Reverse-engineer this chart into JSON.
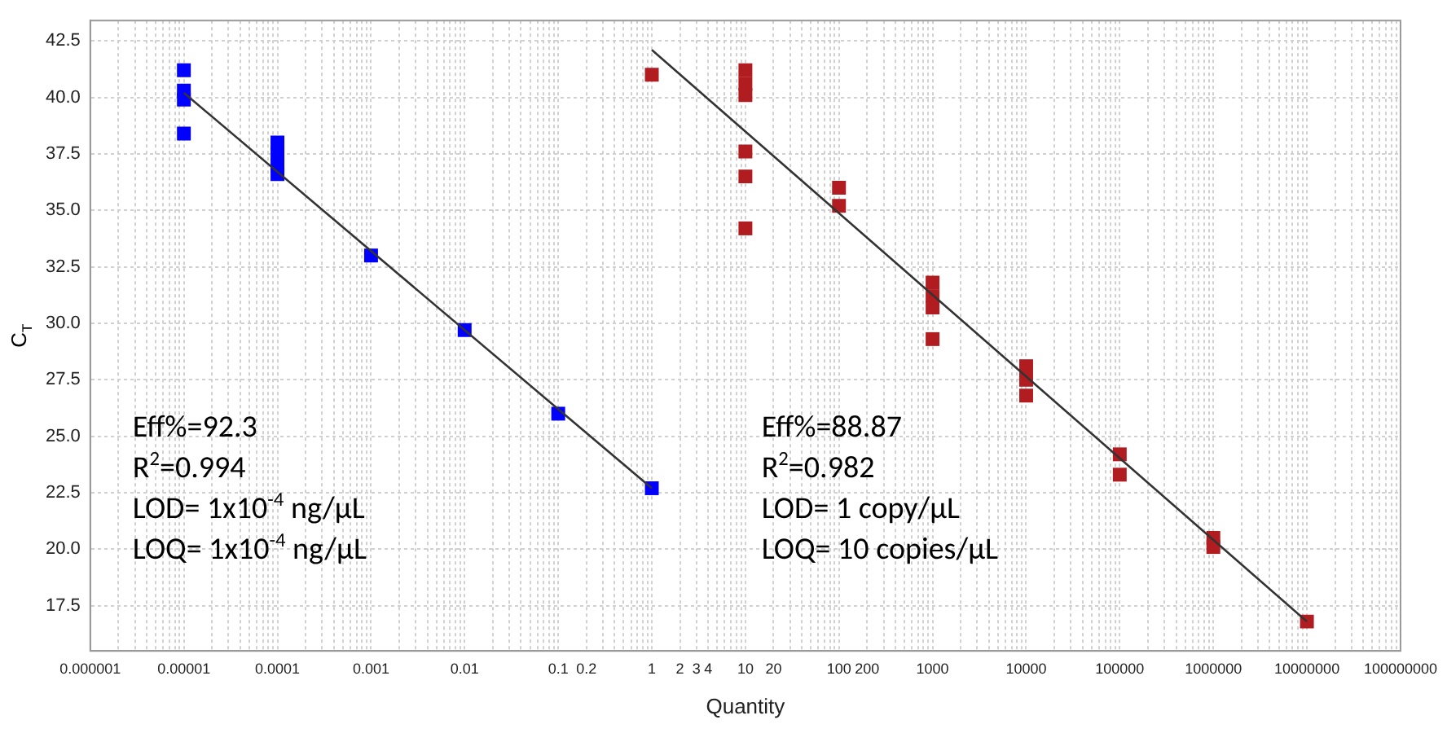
{
  "chart_data": {
    "type": "scatter",
    "xlabel": "Quantity",
    "ylabel": "C$_{T}$",
    "log": "x",
    "grid": true,
    "xlim": [
      1e-06,
      100000000
    ],
    "ylim": [
      15.5,
      43.4
    ],
    "xticks": [
      {
        "value": 1e-06,
        "label": "0.000001"
      },
      {
        "value": 2e-06,
        "label": null
      },
      {
        "value": 3e-06,
        "label": null
      },
      {
        "value": 4e-06,
        "label": null
      },
      {
        "value": 5e-06,
        "label": null
      },
      {
        "value": 6e-06,
        "label": null
      },
      {
        "value": 7e-06,
        "label": null
      },
      {
        "value": 8e-06,
        "label": null
      },
      {
        "value": 9e-06,
        "label": null
      },
      {
        "value": 1e-05,
        "label": "0.00001"
      },
      {
        "value": 2e-05,
        "label": null
      },
      {
        "value": 3e-05,
        "label": null
      },
      {
        "value": 4e-05,
        "label": null
      },
      {
        "value": 5e-05,
        "label": null
      },
      {
        "value": 6e-05,
        "label": null
      },
      {
        "value": 7e-05,
        "label": null
      },
      {
        "value": 8e-05,
        "label": null
      },
      {
        "value": 9e-05,
        "label": null
      },
      {
        "value": 0.0001,
        "label": "0.0001"
      },
      {
        "value": 0.0002,
        "label": null
      },
      {
        "value": 0.0003,
        "label": null
      },
      {
        "value": 0.0004,
        "label": null
      },
      {
        "value": 0.0005,
        "label": null
      },
      {
        "value": 0.0006,
        "label": null
      },
      {
        "value": 0.0007,
        "label": null
      },
      {
        "value": 0.0008,
        "label": null
      },
      {
        "value": 0.0009,
        "label": null
      },
      {
        "value": 0.001,
        "label": "0.001"
      },
      {
        "value": 0.002,
        "label": null
      },
      {
        "value": 0.003,
        "label": null
      },
      {
        "value": 0.004,
        "label": null
      },
      {
        "value": 0.005,
        "label": null
      },
      {
        "value": 0.006,
        "label": null
      },
      {
        "value": 0.007,
        "label": null
      },
      {
        "value": 0.008,
        "label": null
      },
      {
        "value": 0.009,
        "label": null
      },
      0.01,
      {
        "value": 0.02,
        "label": null
      },
      {
        "value": 0.03,
        "label": null
      },
      {
        "value": 0.04,
        "label": null
      },
      {
        "value": 0.05,
        "label": null
      },
      {
        "value": 0.06,
        "label": null
      },
      {
        "value": 0.07,
        "label": null
      },
      {
        "value": 0.08,
        "label": null
      },
      {
        "value": 0.09,
        "label": null
      },
      0.1,
      0.2,
      {
        "value": 0.3,
        "label": null
      },
      {
        "value": 0.4,
        "label": null
      },
      {
        "value": 0.5,
        "label": null
      },
      {
        "value": 0.6,
        "label": null
      },
      {
        "value": 0.7,
        "label": null
      },
      {
        "value": 0.8,
        "label": null
      },
      {
        "value": 0.9,
        "label": null
      },
      1,
      2,
      3,
      4,
      {
        "value": 5,
        "label": null
      },
      {
        "value": 6,
        "label": null
      },
      {
        "value": 7,
        "label": null
      },
      {
        "value": 8,
        "label": null
      },
      {
        "value": 9,
        "label": null
      },
      10,
      20,
      {
        "value": 30,
        "label": null
      },
      {
        "value": 40,
        "label": null
      },
      {
        "value": 50,
        "label": null
      },
      {
        "value": 60,
        "label": null
      },
      {
        "value": 70,
        "label": null
      },
      {
        "value": 80,
        "label": null
      },
      {
        "value": 90,
        "label": null
      },
      100,
      200,
      {
        "value": 300,
        "label": null
      },
      {
        "value": 400,
        "label": null
      },
      {
        "value": 500,
        "label": null
      },
      {
        "value": 600,
        "label": null
      },
      {
        "value": 700,
        "label": null
      },
      {
        "value": 800,
        "label": null
      },
      {
        "value": 900,
        "label": null
      },
      1000,
      {
        "value": 2000,
        "label": null
      },
      {
        "value": 3000,
        "label": null
      },
      {
        "value": 4000,
        "label": null
      },
      {
        "value": 5000,
        "label": null
      },
      {
        "value": 6000,
        "label": null
      },
      {
        "value": 7000,
        "label": null
      },
      {
        "value": 8000,
        "label": null
      },
      {
        "value": 9000,
        "label": null
      },
      10000,
      {
        "value": 20000,
        "label": null
      },
      {
        "value": 30000,
        "label": null
      },
      {
        "value": 40000,
        "label": null
      },
      {
        "value": 50000,
        "label": null
      },
      {
        "value": 60000,
        "label": null
      },
      {
        "value": 70000,
        "label": null
      },
      {
        "value": 80000,
        "label": null
      },
      {
        "value": 90000,
        "label": null
      },
      100000,
      {
        "value": 200000,
        "label": null
      },
      {
        "value": 300000,
        "label": null
      },
      {
        "value": 400000,
        "label": null
      },
      {
        "value": 500000,
        "label": null
      },
      {
        "value": 600000,
        "label": null
      },
      {
        "value": 700000,
        "label": null
      },
      {
        "value": 800000,
        "label": null
      },
      {
        "value": 900000,
        "label": null
      },
      1000000,
      {
        "value": 2000000,
        "label": null
      },
      {
        "value": 3000000,
        "label": null
      },
      {
        "value": 4000000,
        "label": null
      },
      {
        "value": 5000000,
        "label": null
      },
      {
        "value": 6000000,
        "label": null
      },
      {
        "value": 7000000,
        "label": null
      },
      {
        "value": 8000000,
        "label": null
      },
      {
        "value": 9000000,
        "label": null
      },
      10000000,
      {
        "value": 20000000,
        "label": null
      },
      {
        "value": 30000000,
        "label": null
      },
      {
        "value": 40000000,
        "label": null
      },
      {
        "value": 50000000,
        "label": null
      },
      {
        "value": 60000000,
        "label": null
      },
      {
        "value": 70000000,
        "label": null
      },
      {
        "value": 80000000,
        "label": null
      },
      {
        "value": 90000000,
        "label": null
      },
      100000000
    ],
    "yticks": [
      {
        "value": 17.5,
        "label": "17.5"
      },
      {
        "value": 20,
        "label": "20.0"
      },
      {
        "value": 22.5,
        "label": "22.5"
      },
      {
        "value": 25,
        "label": "25.0"
      },
      {
        "value": 27.5,
        "label": "27.5"
      },
      {
        "value": 30,
        "label": "30.0"
      },
      {
        "value": 32.5,
        "label": "32.5"
      },
      {
        "value": 35,
        "label": "35.0"
      },
      {
        "value": 37.5,
        "label": "37.5"
      },
      {
        "value": 40,
        "label": "40.0"
      },
      {
        "value": 42.5,
        "label": "42.5"
      }
    ],
    "series": [
      {
        "type": "scatter",
        "marker": "square",
        "color": "#0000ff",
        "x": [
          1e-05,
          1e-05,
          1e-05,
          1e-05,
          0.0001,
          0.0001,
          0.0001,
          0.0001,
          0.001,
          0.01,
          0.1,
          1
        ],
        "values": [
          41.2,
          40.3,
          39.9,
          38.4,
          38.0,
          37.5,
          37.0,
          36.6,
          33.0,
          29.7,
          26.0,
          22.7
        ]
      },
      {
        "type": "scatter",
        "marker": "square",
        "color": "#b01c20",
        "x": [
          1,
          10,
          10,
          10,
          10,
          10,
          10,
          100,
          100,
          1000,
          1000,
          1000,
          1000,
          10000,
          10000,
          10000,
          100000,
          100000,
          1000000,
          1000000,
          10000000
        ],
        "values": [
          41.0,
          41.2,
          40.6,
          40.1,
          37.6,
          36.5,
          34.2,
          36.0,
          35.2,
          31.8,
          31.2,
          30.7,
          29.3,
          28.1,
          27.5,
          26.8,
          24.2,
          23.3,
          20.5,
          20.1,
          16.8
        ]
      },
      {
        "type": "line",
        "marker": "none",
        "color": "#333333",
        "x": [
          1e-05,
          1
        ],
        "values": [
          40.2,
          22.7
        ]
      },
      {
        "type": "line",
        "marker": "none",
        "color": "#333333",
        "x": [
          1,
          10000000
        ],
        "values": [
          42.1,
          16.8
        ]
      }
    ],
    "annotations": [
      "Eff%=92.3",
      "R$^{2}$=0.994",
      "LOD= 1x10$^{-4}$ ng/µL",
      "LOQ= 1x10$^{-4}$ ng/µL",
      "Eff%=88.87",
      "R$^{2}$=0.982",
      "LOD= 1 copy/µL",
      "LOQ= 10 copies/µL"
    ]
  }
}
